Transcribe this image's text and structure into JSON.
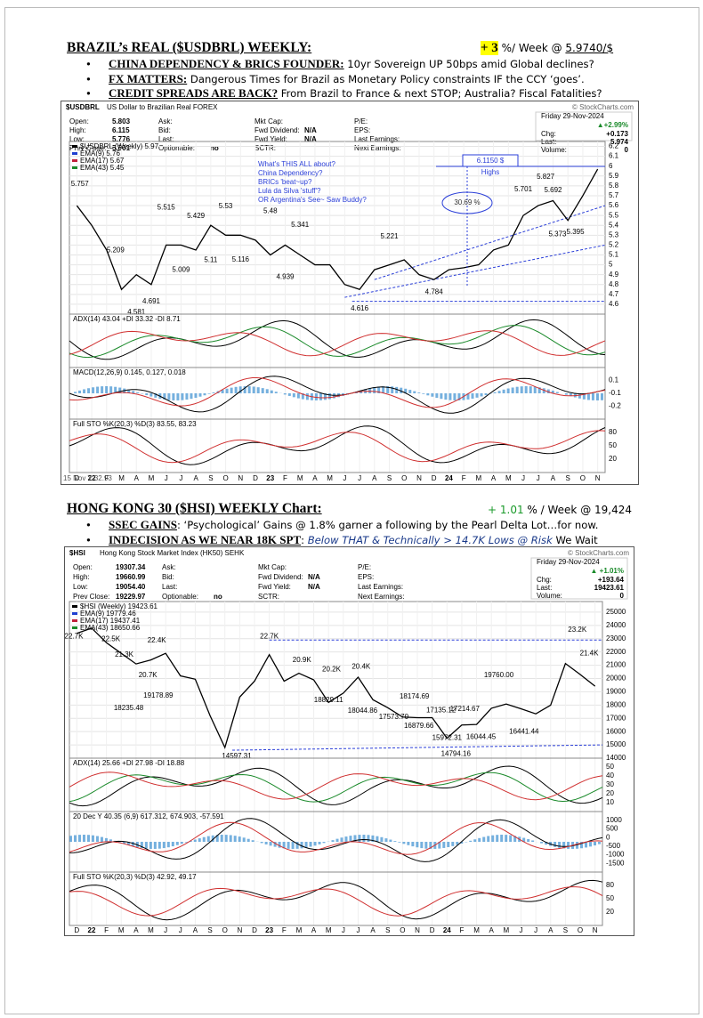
{
  "sections": [
    {
      "heading": "BRAZIL’s REAL ($USDBRL) WEEKLY:",
      "change": "+ 3",
      "change_text": "%/ Week @",
      "level": "5.9740/$",
      "bullets": [
        {
          "lead": "CHINA DEPENDENCY & BRICS FOUNDER:",
          "text": "10yr Sovereign UP 50bps amid Global declines?"
        },
        {
          "lead": "FX MATTERS:",
          "text": "Dangerous Times for Brazil as Monetary Policy constraints IF the CCY ‘goes’."
        },
        {
          "lead": "CREDIT SPREADS ARE BACK?",
          "text": "From Brazil to France & next STOP; Australia? Fiscal Fatalities?"
        }
      ],
      "chart": {
        "symbol": "$USDBRL",
        "name": "US Dollar to Brazilian Real FOREX",
        "copyright": "© StockCharts.com",
        "info": [
          [
            [
              "Open:",
              "5.803"
            ],
            [
              "High:",
              "6.115"
            ],
            [
              "Low:",
              "5.776"
            ],
            [
              "Prev Close:",
              "5.801"
            ]
          ],
          [
            [
              "Ask:"
            ],
            [
              "Bid:"
            ],
            [
              "Last:"
            ],
            [
              "Optionable:",
              "no"
            ]
          ],
          [
            [
              "Mkt Cap:"
            ],
            [
              "Fwd Dividend:",
              "N/A"
            ],
            [
              "Fwd Yield:",
              "N/A"
            ],
            [
              "SCTR:"
            ]
          ],
          [
            [
              "P/E:"
            ],
            [
              "EPS:"
            ],
            [
              "Last Earnings:"
            ],
            [
              "Next Earnings:"
            ]
          ]
        ],
        "quote": {
          "date": "Friday 29-Nov-2024",
          "change": "▲+2.99%",
          "rows": [
            [
              "Chg:",
              "+0.173"
            ],
            [
              "Last:",
              "5.974"
            ],
            [
              "Volume:",
              "0"
            ]
          ]
        },
        "legend": [
          {
            "name": "$USDBRL (Weekly) 5.97",
            "color": "#000000"
          },
          {
            "name": "EMA(9) 5.76",
            "color": "#1f3fd0"
          },
          {
            "name": "EMA(17) 5.67",
            "color": "#c0203a"
          },
          {
            "name": "EMA(43) 5.45",
            "color": "#1a8a2a"
          }
        ],
        "annotations": [
          "What's THIS ALL about?",
          "China Dependency?",
          "BRICs 'beat~up?",
          "Lula da Silva 'stuff'?",
          "OR Argentina's See~ Saw Buddy?"
        ],
        "high_box": [
          "6.1150 $",
          "Highs"
        ],
        "pct_box": "30.69 %",
        "ylim": [
          4.5,
          6.25
        ],
        "yticks": [
          4.6,
          4.7,
          4.8,
          4.9,
          5,
          5.1,
          5.2,
          5.3,
          5.4,
          5.5,
          5.6,
          5.7,
          5.8,
          5.9,
          6,
          6.1,
          6.2
        ],
        "months": [
          "D",
          "22",
          "F",
          "M",
          "A",
          "M",
          "J",
          "J",
          "A",
          "S",
          "O",
          "N",
          "D",
          "23",
          "F",
          "M",
          "A",
          "M",
          "J",
          "J",
          "A",
          "S",
          "O",
          "N",
          "D",
          "24",
          "F",
          "M",
          "A",
          "M",
          "J",
          "J",
          "A",
          "S",
          "O",
          "N"
        ],
        "price": [
          5.6,
          5.4,
          5.15,
          4.75,
          4.9,
          4.8,
          5.2,
          5.2,
          5.15,
          5.4,
          5.3,
          5.3,
          5.25,
          5.1,
          5.2,
          5.1,
          5,
          5,
          4.8,
          4.75,
          4.95,
          5,
          5.05,
          4.9,
          4.85,
          4.95,
          4.97,
          5,
          5.15,
          5.2,
          5.5,
          5.6,
          5.65,
          5.45,
          5.7,
          5.97
        ],
        "price_labels": [
          5.757,
          5.515,
          5.429,
          5.53,
          5.48,
          5.341,
          5.209,
          5.009,
          5.11,
          5.116,
          4.939,
          4.581,
          4.691,
          5.221,
          4.616,
          4.784,
          5.701,
          5.827,
          5.692,
          5.373,
          5.395
        ],
        "panels": [
          {
            "label": "ADX(14) 43.04 +DI 33.32 -DI 8.71",
            "ticks": []
          },
          {
            "label": "MACD(12,26,9) 0.145, 0.127, 0.018",
            "ticks": [
              "0.1",
              "-0.1",
              "-0.2"
            ]
          },
          {
            "label": "Full STO %K(20,3) %D(3) 83.55, 83.23",
            "ticks": [
              "80",
              "50",
              "20"
            ]
          }
        ],
        "footnote": "15 Nov Y 32.93"
      }
    },
    {
      "heading": "HONG KONG 30 ($HSI) WEEKLY Chart:",
      "change": "+ 1.01",
      "change_text": "% / Week @ 19,424",
      "bullets": [
        {
          "lead": "SSEC GAINS",
          "text": ": ‘Psychological’ Gains @ 1.8% garner a following by the Pearl Delta Lot…for now."
        },
        {
          "lead": "INDECISION AS WE NEAR 18K SPT",
          "text": ":",
          "emph": "Below THAT & Technically > 14.7K Lows @ Risk",
          "tail": "We Wait"
        }
      ],
      "chart": {
        "symbol": "$HSI",
        "name": "Hong Kong Stock Market Index (HK50) SEHK",
        "copyright": "© StockCharts.com",
        "info": [
          [
            [
              "Open:",
              "19307.34"
            ],
            [
              "High:",
              "19660.99"
            ],
            [
              "Low:",
              "19054.40"
            ],
            [
              "Prev Close:",
              "19229.97"
            ]
          ],
          [
            [
              "Ask:"
            ],
            [
              "Bid:"
            ],
            [
              "Last:"
            ],
            [
              "Optionable:",
              "no"
            ]
          ],
          [
            [
              "Mkt Cap:"
            ],
            [
              "Fwd Dividend:",
              "N/A"
            ],
            [
              "Fwd Yield:",
              "N/A"
            ],
            [
              "SCTR:"
            ]
          ],
          [
            [
              "P/E:"
            ],
            [
              "EPS:"
            ],
            [
              "Last Earnings:"
            ],
            [
              "Next Earnings:"
            ]
          ]
        ],
        "quote": {
          "date": "Friday 29-Nov-2024",
          "change": "▲ +1.01%",
          "rows": [
            [
              "Chg:",
              "+193.64"
            ],
            [
              "Last:",
              "19423.61"
            ],
            [
              "Volume:",
              "0"
            ]
          ]
        },
        "legend": [
          {
            "name": "$HSI (Weekly) 19423.61",
            "color": "#000000"
          },
          {
            "name": "EMA(9) 19779.46",
            "color": "#1f3fd0"
          },
          {
            "name": "EMA(17) 19437.41",
            "color": "#c0203a"
          },
          {
            "name": "EMA(43) 18650.66",
            "color": "#1a8a2a"
          }
        ],
        "ylim": [
          14000,
          25800
        ],
        "yticks": [
          14000,
          15000,
          16000,
          17000,
          18000,
          19000,
          20000,
          21000,
          22000,
          23000,
          24000,
          25000
        ],
        "months": [
          "D",
          "22",
          "F",
          "M",
          "A",
          "M",
          "J",
          "J",
          "A",
          "S",
          "O",
          "N",
          "D",
          "23",
          "F",
          "M",
          "A",
          "M",
          "J",
          "J",
          "A",
          "S",
          "O",
          "N",
          "D",
          "24",
          "F",
          "M",
          "A",
          "M",
          "J",
          "J",
          "A",
          "S",
          "O",
          "N"
        ],
        "price": [
          23400,
          23800,
          22700,
          21900,
          21100,
          21400,
          21900,
          20200,
          19950,
          17200,
          14800,
          18600,
          19800,
          21800,
          19800,
          20400,
          19900,
          18200,
          18900,
          20100,
          18400,
          17800,
          17100,
          17050,
          17050,
          15500,
          16500,
          16540,
          17760,
          18080,
          17720,
          17340,
          17990,
          21130,
          20300,
          19420
        ],
        "price_labels": [
          {
            "value": 22700,
            "label": "22.7K"
          },
          {
            "value": 22500,
            "label": "22.5K"
          },
          {
            "value": 21300,
            "label": "21.3K"
          },
          {
            "value": 22400,
            "label": "22.4K"
          },
          {
            "value": 20700,
            "label": "20.7K"
          },
          {
            "value": 19178.89,
            "label": "19178.89"
          },
          {
            "value": 18235.48,
            "label": "18235.48"
          },
          {
            "value": 14597.31,
            "label": "14597.31"
          },
          {
            "value": 22700,
            "label": "22.7K"
          },
          {
            "value": 20900,
            "label": "20.9K"
          },
          {
            "value": 20200,
            "label": "20.2K"
          },
          {
            "value": 20400,
            "label": "20.4K"
          },
          {
            "value": 18829.11,
            "label": "18829.11"
          },
          {
            "value": 18044.86,
            "label": "18044.86"
          },
          {
            "value": 17573.7,
            "label": "17573.70"
          },
          {
            "value": 18174.69,
            "label": "18174.69"
          },
          {
            "value": 16879.66,
            "label": "16879.66"
          },
          {
            "value": 17135.12,
            "label": "17135.12"
          },
          {
            "value": 15972.31,
            "label": "15972.31"
          },
          {
            "value": 17214.67,
            "label": "17214.67"
          },
          {
            "value": 14794.16,
            "label": "14794.16"
          },
          {
            "value": 16044.45,
            "label": "16044.45"
          },
          {
            "value": 19760,
            "label": "19760.00"
          },
          {
            "value": 16441.44,
            "label": "16441.44"
          },
          {
            "value": 23200,
            "label": "23.2K"
          },
          {
            "value": 21400,
            "label": "21.4K"
          }
        ],
        "panels": [
          {
            "label": "ADX(14) 25.66 +DI 27.98 -DI 18.88",
            "ticks": [
              "50",
              "40",
              "30",
              "20",
              "10"
            ]
          },
          {
            "label": "20 Dec Y 40.35 (6,9) 617.312, 674.903, -57.591",
            "ticks": [
              "1000",
              "500",
              "0",
              "-500",
              "-1000",
              "-1500"
            ]
          },
          {
            "label": "Full STO %K(20,3) %D(3) 42.92, 49.17",
            "ticks": [
              "80",
              "50",
              "20"
            ]
          }
        ]
      }
    }
  ]
}
